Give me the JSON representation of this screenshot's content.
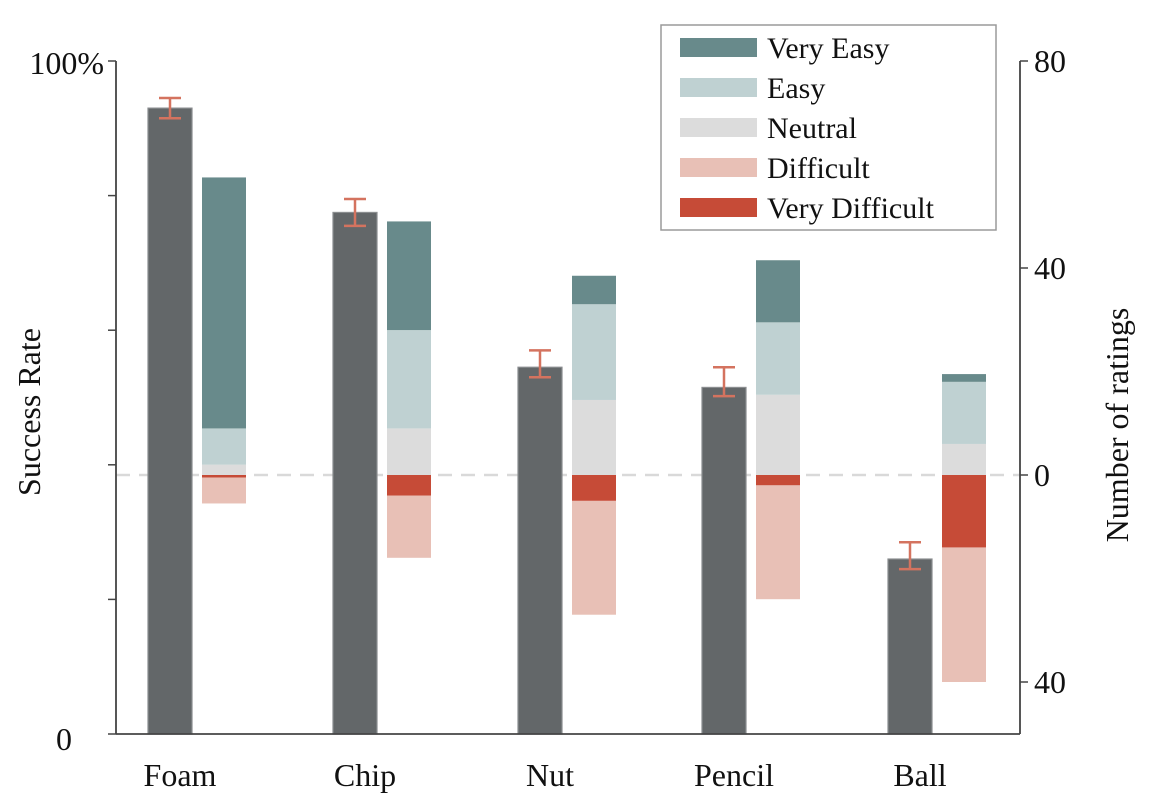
{
  "chart_data": {
    "type": "bar",
    "title": "",
    "categories": [
      "Foam",
      "Chip",
      "Nut",
      "Pencil",
      "Ball"
    ],
    "success_rate": {
      "name": "Success Rate",
      "ylabel": "Success Rate",
      "ylim": [
        0,
        100
      ],
      "tick_labels": [
        "0",
        "100%"
      ],
      "values": [
        93,
        77.5,
        54.5,
        51.5,
        26
      ],
      "error_low": [
        91.5,
        75.5,
        53,
        50.2,
        24.5
      ],
      "error_high": [
        94.5,
        79.5,
        57,
        54.5,
        28.5
      ]
    },
    "ratings": {
      "ylabel": "Number of ratings",
      "ylim": [
        -50,
        80
      ],
      "tick_labels": [
        "40",
        "0",
        "40",
        "80"
      ],
      "tick_values": [
        -40,
        0,
        40,
        80
      ],
      "legend_position": "top-right",
      "series": [
        {
          "name": "Very Difficult",
          "values": [
            -0.5,
            -4,
            -5,
            -2,
            -14
          ],
          "color": "#c64b37"
        },
        {
          "name": "Difficult",
          "values": [
            -5,
            -12,
            -22,
            -22,
            -26
          ],
          "color": "#e8c0b6"
        },
        {
          "name": "Neutral",
          "values": [
            2,
            9,
            14.5,
            15.5,
            6
          ],
          "color": "#dcdcdc"
        },
        {
          "name": "Easy",
          "values": [
            7,
            19,
            18.5,
            14,
            12
          ],
          "color": "#bfd1d2"
        },
        {
          "name": "Very Easy",
          "values": [
            48.5,
            21,
            5.5,
            12,
            1.5
          ],
          "color": "#688a8b"
        }
      ]
    },
    "colors": {
      "success_bar": "#636769",
      "error_bar": "#d4735f",
      "zero_line": "#d9d9d9",
      "axis": "#444444"
    }
  }
}
